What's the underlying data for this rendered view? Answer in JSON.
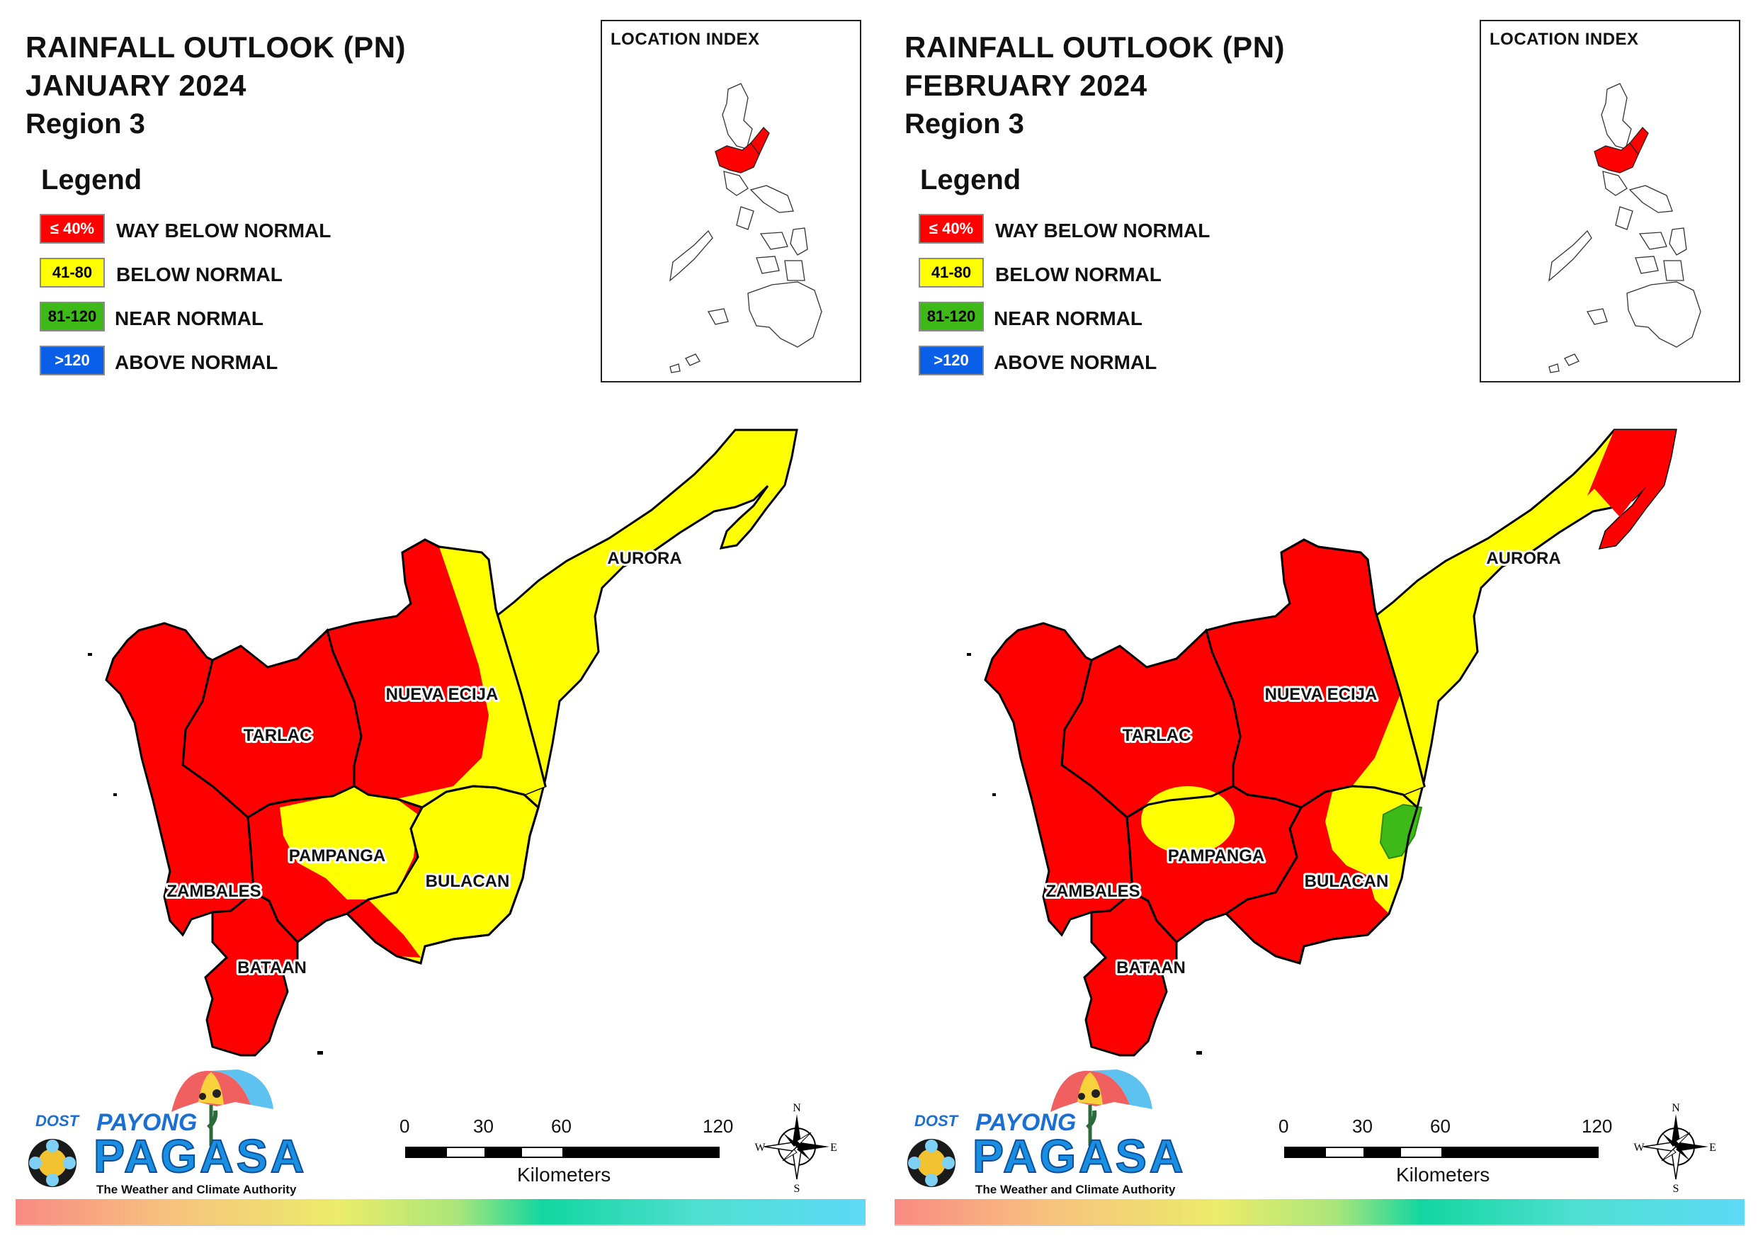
{
  "colors": {
    "way_below": "#ff0000",
    "below": "#ffff00",
    "near": "#3dba17",
    "above": "#0a5fe8",
    "border": "#000000"
  },
  "legend": {
    "heading": "Legend",
    "items": [
      {
        "range": "≤ 40%",
        "label": "WAY BELOW NORMAL",
        "color_key": "way_below",
        "text_color": "#ffffff"
      },
      {
        "range": "41-80",
        "label": "BELOW NORMAL",
        "color_key": "below",
        "text_color": "#000000"
      },
      {
        "range": "81-120",
        "label": "NEAR NORMAL",
        "color_key": "near",
        "text_color": "#000000"
      },
      {
        "range": ">120",
        "label": "ABOVE NORMAL",
        "color_key": "above",
        "text_color": "#ffffff"
      }
    ]
  },
  "index": {
    "title": "LOCATION INDEX"
  },
  "provinces": {
    "aurora": "AURORA",
    "nueva_ecija": "NUEVA ECIJA",
    "tarlac": "TARLAC",
    "pampanga": "PAMPANGA",
    "bulacan": "BULACAN",
    "zambales": "ZAMBALES",
    "bataan": "BATAAN"
  },
  "panels": [
    {
      "id": "january",
      "title_line1": "RAINFALL OUTLOOK (PN)",
      "title_line2": "JANUARY 2024",
      "title_line3": "Region 3",
      "province_outlook": {
        "aurora": "below",
        "nueva_ecija": "way_below (east edge below)",
        "tarlac": "way_below",
        "pampanga": "below (south-west way_below)",
        "bulacan": "below (south-west way_below)",
        "zambales": "way_below",
        "bataan": "way_below"
      }
    },
    {
      "id": "february",
      "title_line1": "RAINFALL OUTLOOK (PN)",
      "title_line2": "FEBRUARY 2024",
      "title_line3": "Region 3",
      "province_outlook": {
        "aurora": "below (north tip way_below)",
        "nueva_ecija": "way_below (south-east below)",
        "tarlac": "way_below",
        "pampanga": "way_below (north below)",
        "bulacan": "way_below (east below, near_normal patch)",
        "zambales": "way_below",
        "bataan": "way_below"
      }
    }
  ],
  "branding": {
    "dost": "DOST",
    "payong": "PAYONG",
    "pagasa": "PAGASA",
    "tagline": "The Weather and Climate Authority"
  },
  "scale_bar": {
    "ticks": [
      "0",
      "30",
      "60",
      "120"
    ],
    "unit": "Kilometers"
  },
  "compass": {
    "n": "N",
    "e": "E",
    "s": "S",
    "w": "W"
  }
}
